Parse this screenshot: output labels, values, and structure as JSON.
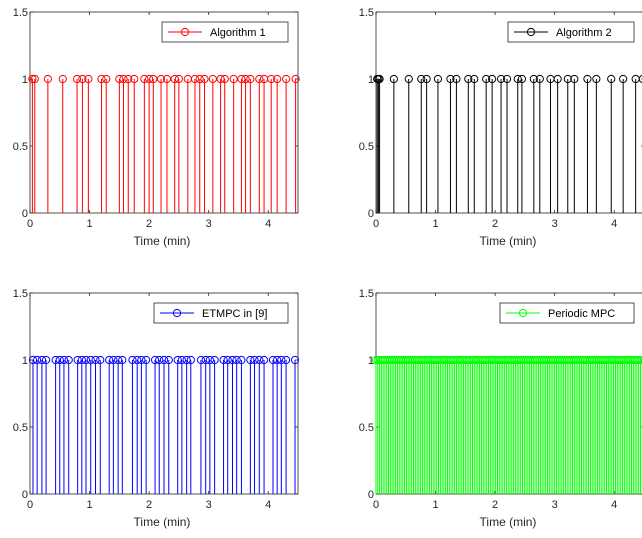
{
  "chart_data": [
    {
      "type": "stem",
      "xlabel": "Time (min)",
      "xlim": [
        0,
        4.5
      ],
      "ylim": [
        0,
        1.5
      ],
      "xticks": [
        0,
        1,
        2,
        3,
        4
      ],
      "xtick_labels": [
        "0",
        "1",
        "2",
        "3",
        "4"
      ],
      "yticks": [
        0,
        0.5,
        1,
        1.5
      ],
      "ytick_labels": [
        "0",
        "0.5",
        "1",
        "1.5"
      ],
      "legend_position": "top-right",
      "series": [
        {
          "name": "Algorithm 1",
          "color": "#ff0000",
          "value": 1,
          "x": [
            0.04,
            0.08,
            0.3,
            0.55,
            0.79,
            0.88,
            0.98,
            1.2,
            1.28,
            1.5,
            1.57,
            1.65,
            1.75,
            1.92,
            2.0,
            2.07,
            2.2,
            2.3,
            2.43,
            2.5,
            2.65,
            2.77,
            2.85,
            2.93,
            3.07,
            3.2,
            3.27,
            3.42,
            3.55,
            3.62,
            3.7,
            3.85,
            3.93,
            4.05,
            4.15,
            4.3,
            4.46
          ]
        }
      ]
    },
    {
      "type": "stem",
      "xlabel": "Time (min)",
      "xlim": [
        0,
        4.5
      ],
      "ylim": [
        0,
        1.5
      ],
      "xticks": [
        0,
        1,
        2,
        3,
        4
      ],
      "xtick_labels": [
        "0",
        "1",
        "2",
        "3",
        "4"
      ],
      "yticks": [
        0,
        0.5,
        1,
        1.5
      ],
      "ytick_labels": [
        "0",
        "0.5",
        "1",
        "1.5"
      ],
      "legend_position": "top-right",
      "series": [
        {
          "name": "Algorithm 2",
          "color": "#000000",
          "value": 1,
          "x": [
            0.02,
            0.04,
            0.06,
            0.3,
            0.55,
            0.76,
            0.85,
            1.04,
            1.25,
            1.35,
            1.55,
            1.65,
            1.85,
            1.95,
            2.1,
            2.2,
            2.38,
            2.45,
            2.65,
            2.75,
            2.93,
            3.05,
            3.22,
            3.33,
            3.55,
            3.7,
            3.95,
            4.15,
            4.36,
            4.48
          ]
        }
      ]
    },
    {
      "type": "stem",
      "xlabel": "Time (min)",
      "xlim": [
        0,
        4.5
      ],
      "ylim": [
        0,
        1.5
      ],
      "xticks": [
        0,
        1,
        2,
        3,
        4
      ],
      "xtick_labels": [
        "0",
        "1",
        "2",
        "3",
        "4"
      ],
      "yticks": [
        0,
        0.5,
        1,
        1.5
      ],
      "ytick_labels": [
        "0",
        "0.5",
        "1",
        "1.5"
      ],
      "legend_position": "top-right",
      "series": [
        {
          "name": "ETMPC in [9]",
          "color": "#0000ff",
          "value": 1,
          "x": [
            0.05,
            0.12,
            0.2,
            0.27,
            0.43,
            0.5,
            0.57,
            0.65,
            0.8,
            0.87,
            0.94,
            1.02,
            1.1,
            1.18,
            1.33,
            1.4,
            1.48,
            1.55,
            1.72,
            1.8,
            1.87,
            1.95,
            2.1,
            2.17,
            2.25,
            2.33,
            2.48,
            2.55,
            2.63,
            2.7,
            2.87,
            2.95,
            3.02,
            3.1,
            3.25,
            3.32,
            3.4,
            3.47,
            3.55,
            3.7,
            3.77,
            3.85,
            3.93,
            4.08,
            4.15,
            4.22,
            4.3,
            4.45
          ]
        }
      ]
    },
    {
      "type": "stem",
      "xlabel": "Time (min)",
      "xlim": [
        0,
        4.5
      ],
      "ylim": [
        0,
        1.5
      ],
      "xticks": [
        0,
        1,
        2,
        3,
        4
      ],
      "xtick_labels": [
        "0",
        "1",
        "2",
        "3",
        "4"
      ],
      "yticks": [
        0,
        0.5,
        1,
        1.5
      ],
      "ytick_labels": [
        "0",
        "0.5",
        "1",
        "1.5"
      ],
      "legend_position": "top-right",
      "series": [
        {
          "name": "Periodic MPC",
          "color": "#00ff00",
          "value": 1,
          "sampling_period": 0.03,
          "x_start": 0,
          "x_end": 4.5
        }
      ]
    }
  ]
}
